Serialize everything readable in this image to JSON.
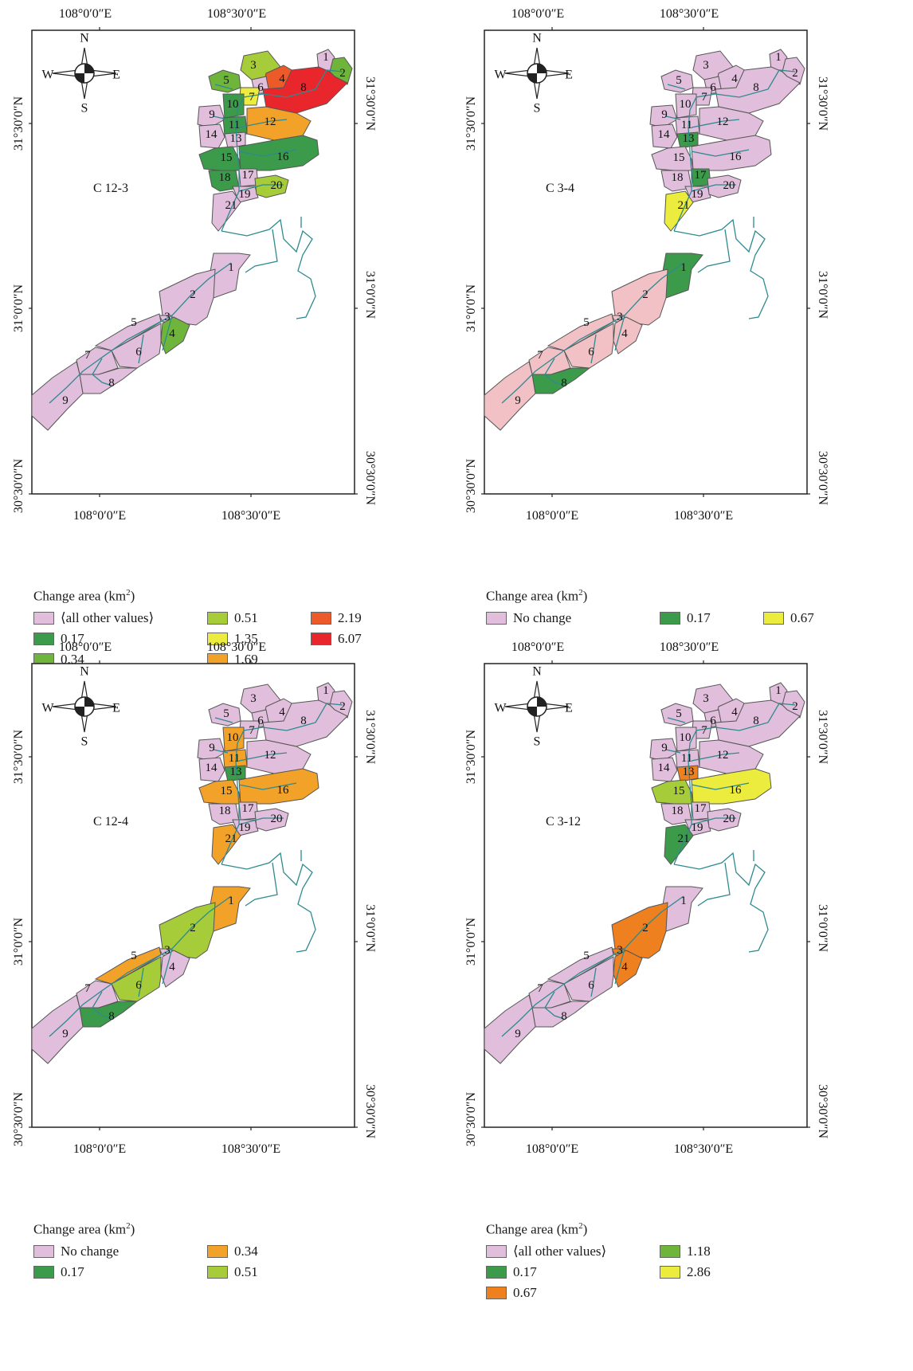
{
  "colors": {
    "pink": "#e0bedc",
    "salmon": "#f2c1c6",
    "dark_green": "#3c9b4b",
    "mid_green": "#6fb53c",
    "yellow_green": "#a6cc3a",
    "yellow": "#ecec3e",
    "orange": "#f2a229",
    "dark_orange": "#ee8020",
    "red_orange": "#ec5a2a",
    "red": "#e8262c",
    "river": "#2e8a8f",
    "outline": "#555555"
  },
  "axes": {
    "x_ticks": [
      "108°0′0″E",
      "108°30′0″E"
    ],
    "y_ticks": [
      "31°30′0″N",
      "31°0′0″N",
      "30°30′0″N"
    ]
  },
  "compass": {
    "n": "N",
    "s": "S",
    "e": "E",
    "w": "W"
  },
  "panels": [
    {
      "label": "C 12-3",
      "legend_title": "Change area (km",
      "legend_sup": "2",
      "legend_title_end": ")",
      "legend": [
        {
          "label": "⟨all other values⟩",
          "color": "#e0bedc"
        },
        {
          "label": "0.51",
          "color": "#a6cc3a"
        },
        {
          "label": "2.19",
          "color": "#ec5a2a"
        },
        {
          "label": "0.17",
          "color": "#3c9b4b"
        },
        {
          "label": "1.35",
          "color": "#ecec3e"
        },
        {
          "label": "6.07",
          "color": "#e8262c"
        },
        {
          "label": "0.34",
          "color": "#6fb53c"
        },
        {
          "label": "1.69",
          "color": "#f2a229"
        }
      ],
      "upper_colors": {
        "1": "#e0bedc",
        "2": "#6fb53c",
        "3": "#a6cc3a",
        "4": "#ec5a2a",
        "5": "#6fb53c",
        "6": "#e0bedc",
        "7": "#ecec3e",
        "8": "#e8262c",
        "9": "#e0bedc",
        "10": "#3c9b4b",
        "11": "#3c9b4b",
        "12": "#f2a229",
        "13": "#e0bedc",
        "14": "#e0bedc",
        "15": "#3c9b4b",
        "16": "#3c9b4b",
        "17": "#e0bedc",
        "18": "#3c9b4b",
        "19": "#e0bedc",
        "20": "#a6cc3a",
        "21": "#e0bedc"
      },
      "lower_colors": {
        "1": "#e0bedc",
        "2": "#e0bedc",
        "3": "#e0bedc",
        "4": "#6fb53c",
        "5": "#e0bedc",
        "6": "#e0bedc",
        "7": "#e0bedc",
        "8": "#e0bedc",
        "9": "#e0bedc"
      }
    },
    {
      "label": "C 3-4",
      "legend_title": "Change area (km",
      "legend_sup": "2",
      "legend_title_end": ")",
      "legend": [
        {
          "label": "No change",
          "color": "#e0bedc"
        },
        {
          "label": "0.17",
          "color": "#3c9b4b"
        },
        {
          "label": "0.67",
          "color": "#ecec3e"
        }
      ],
      "upper_colors": {
        "1": "#e0bedc",
        "2": "#e0bedc",
        "3": "#e0bedc",
        "4": "#e0bedc",
        "5": "#e0bedc",
        "6": "#e0bedc",
        "7": "#e0bedc",
        "8": "#e0bedc",
        "9": "#e0bedc",
        "10": "#e0bedc",
        "11": "#e0bedc",
        "12": "#e0bedc",
        "13": "#3c9b4b",
        "14": "#e0bedc",
        "15": "#e0bedc",
        "16": "#e0bedc",
        "17": "#3c9b4b",
        "18": "#e0bedc",
        "19": "#e0bedc",
        "20": "#e0bedc",
        "21": "#ecec3e"
      },
      "lower_colors": {
        "1": "#3c9b4b",
        "2": "#f2c1c6",
        "3": "#f2c1c6",
        "4": "#f2c1c6",
        "5": "#f2c1c6",
        "6": "#f2c1c6",
        "7": "#f2c1c6",
        "8": "#3c9b4b",
        "9": "#f2c1c6"
      }
    },
    {
      "label": "C 12-4",
      "legend_title": "Change area (km",
      "legend_sup": "2",
      "legend_title_end": ")",
      "legend": [
        {
          "label": "No change",
          "color": "#e0bedc"
        },
        {
          "label": "0.34",
          "color": "#f2a229"
        },
        {
          "label": "",
          "color": ""
        },
        {
          "label": "0.17",
          "color": "#3c9b4b"
        },
        {
          "label": "0.51",
          "color": "#a6cc3a"
        }
      ],
      "upper_colors": {
        "1": "#e0bedc",
        "2": "#e0bedc",
        "3": "#e0bedc",
        "4": "#e0bedc",
        "5": "#e0bedc",
        "6": "#e0bedc",
        "7": "#e0bedc",
        "8": "#e0bedc",
        "9": "#e0bedc",
        "10": "#f2a229",
        "11": "#f2a229",
        "12": "#e0bedc",
        "13": "#3c9b4b",
        "14": "#e0bedc",
        "15": "#f2a229",
        "16": "#f2a229",
        "17": "#e0bedc",
        "18": "#e0bedc",
        "19": "#e0bedc",
        "20": "#e0bedc",
        "21": "#f2a229"
      },
      "lower_colors": {
        "1": "#f2a229",
        "2": "#a6cc3a",
        "3": "#e0bedc",
        "4": "#e0bedc",
        "5": "#f2a229",
        "6": "#a6cc3a",
        "7": "#e0bedc",
        "8": "#3c9b4b",
        "9": "#e0bedc"
      }
    },
    {
      "label": "C 3-12",
      "legend_title": "Change area (km",
      "legend_sup": "2",
      "legend_title_end": ")",
      "legend": [
        {
          "label": "⟨all other values⟩",
          "color": "#e0bedc"
        },
        {
          "label": "1.18",
          "color": "#6fb53c"
        },
        {
          "label": "",
          "color": ""
        },
        {
          "label": "0.17",
          "color": "#3c9b4b"
        },
        {
          "label": "2.86",
          "color": "#ecec3e"
        },
        {
          "label": "",
          "color": ""
        },
        {
          "label": "0.67",
          "color": "#ee8020"
        }
      ],
      "upper_colors": {
        "1": "#e0bedc",
        "2": "#e0bedc",
        "3": "#e0bedc",
        "4": "#e0bedc",
        "5": "#e0bedc",
        "6": "#e0bedc",
        "7": "#e0bedc",
        "8": "#e0bedc",
        "9": "#e0bedc",
        "10": "#e0bedc",
        "11": "#e0bedc",
        "12": "#e0bedc",
        "13": "#ee8020",
        "14": "#e0bedc",
        "15": "#a6cc3a",
        "16": "#ecec3e",
        "17": "#e0bedc",
        "18": "#e0bedc",
        "19": "#e0bedc",
        "20": "#e0bedc",
        "21": "#3c9b4b"
      },
      "lower_colors": {
        "1": "#e0bedc",
        "2": "#ee8020",
        "3": "#ee8020",
        "4": "#ee8020",
        "5": "#e0bedc",
        "6": "#e0bedc",
        "7": "#e0bedc",
        "8": "#e0bedc",
        "9": "#e0bedc"
      }
    }
  ]
}
